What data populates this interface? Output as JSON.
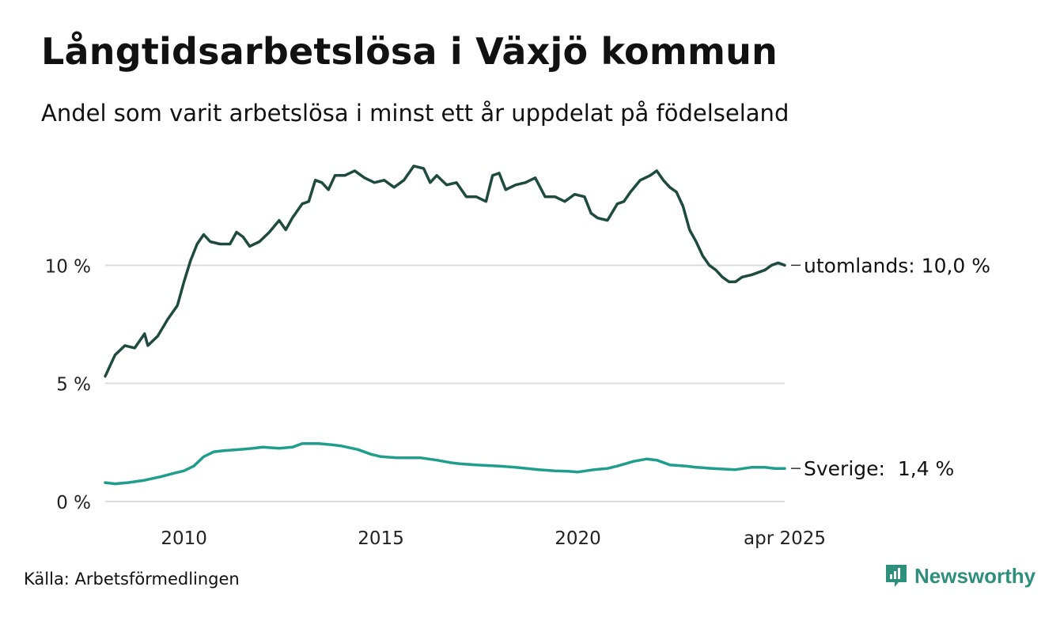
{
  "title": "Långtidsarbetslösa i Växjö kommun",
  "subtitle": "Andel som varit arbetslösa i minst ett år uppdelat på födelseland",
  "source": "Källa: Arbetsförmedlingen",
  "brand": {
    "name": "Newsworthy",
    "logo_icon": "newsworthy-logo-icon",
    "color": "#2e8f7a"
  },
  "chart_data": {
    "type": "line",
    "x_start": "2008-01",
    "x_end": "2025-04",
    "x_step": "month",
    "ylim": [
      0,
      15
    ],
    "yticks": [
      {
        "value": 0,
        "label": "0 %"
      },
      {
        "value": 5,
        "label": "5 %"
      },
      {
        "value": 10,
        "label": "10 %"
      }
    ],
    "xticks": [
      {
        "date": "2010-01",
        "label": "2010"
      },
      {
        "date": "2015-01",
        "label": "2015"
      },
      {
        "date": "2020-01",
        "label": "2020"
      },
      {
        "date": "2025-04",
        "label": "apr 2025"
      }
    ],
    "grid": "horizontal",
    "series": [
      {
        "name": "utomlands",
        "end_label": "utomlands: 10,0 %",
        "color": "#1f4a40",
        "anchors": [
          [
            "2008-01",
            5.3
          ],
          [
            "2008-04",
            6.2
          ],
          [
            "2008-07",
            6.6
          ],
          [
            "2008-10",
            6.5
          ],
          [
            "2009-01",
            7.1
          ],
          [
            "2009-02",
            6.6
          ],
          [
            "2009-05",
            7.0
          ],
          [
            "2009-08",
            7.7
          ],
          [
            "2009-11",
            8.3
          ],
          [
            "2010-01",
            9.3
          ],
          [
            "2010-03",
            10.2
          ],
          [
            "2010-05",
            10.9
          ],
          [
            "2010-07",
            11.3
          ],
          [
            "2010-09",
            11.0
          ],
          [
            "2010-12",
            10.9
          ],
          [
            "2011-03",
            10.9
          ],
          [
            "2011-05",
            11.4
          ],
          [
            "2011-07",
            11.2
          ],
          [
            "2011-09",
            10.8
          ],
          [
            "2011-12",
            11.0
          ],
          [
            "2012-03",
            11.4
          ],
          [
            "2012-06",
            11.9
          ],
          [
            "2012-08",
            11.5
          ],
          [
            "2012-10",
            12.0
          ],
          [
            "2013-01",
            12.6
          ],
          [
            "2013-03",
            12.7
          ],
          [
            "2013-05",
            13.6
          ],
          [
            "2013-07",
            13.5
          ],
          [
            "2013-09",
            13.2
          ],
          [
            "2013-11",
            13.8
          ],
          [
            "2014-02",
            13.8
          ],
          [
            "2014-05",
            14.0
          ],
          [
            "2014-08",
            13.7
          ],
          [
            "2014-11",
            13.5
          ],
          [
            "2015-02",
            13.6
          ],
          [
            "2015-05",
            13.3
          ],
          [
            "2015-08",
            13.6
          ],
          [
            "2015-11",
            14.2
          ],
          [
            "2016-02",
            14.1
          ],
          [
            "2016-04",
            13.5
          ],
          [
            "2016-06",
            13.8
          ],
          [
            "2016-09",
            13.4
          ],
          [
            "2016-12",
            13.5
          ],
          [
            "2017-03",
            12.9
          ],
          [
            "2017-06",
            12.9
          ],
          [
            "2017-09",
            12.7
          ],
          [
            "2017-11",
            13.8
          ],
          [
            "2018-01",
            13.9
          ],
          [
            "2018-03",
            13.2
          ],
          [
            "2018-06",
            13.4
          ],
          [
            "2018-09",
            13.5
          ],
          [
            "2018-12",
            13.7
          ],
          [
            "2019-03",
            12.9
          ],
          [
            "2019-06",
            12.9
          ],
          [
            "2019-09",
            12.7
          ],
          [
            "2019-12",
            13.0
          ],
          [
            "2020-03",
            12.9
          ],
          [
            "2020-05",
            12.2
          ],
          [
            "2020-07",
            12.0
          ],
          [
            "2020-10",
            11.9
          ],
          [
            "2021-01",
            12.6
          ],
          [
            "2021-03",
            12.7
          ],
          [
            "2021-05",
            13.1
          ],
          [
            "2021-08",
            13.6
          ],
          [
            "2021-11",
            13.8
          ],
          [
            "2022-01",
            14.0
          ],
          [
            "2022-03",
            13.6
          ],
          [
            "2022-05",
            13.3
          ],
          [
            "2022-07",
            13.1
          ],
          [
            "2022-09",
            12.5
          ],
          [
            "2022-11",
            11.5
          ],
          [
            "2023-01",
            11.0
          ],
          [
            "2023-03",
            10.4
          ],
          [
            "2023-05",
            10.0
          ],
          [
            "2023-07",
            9.8
          ],
          [
            "2023-09",
            9.5
          ],
          [
            "2023-11",
            9.3
          ],
          [
            "2024-01",
            9.3
          ],
          [
            "2024-03",
            9.5
          ],
          [
            "2024-06",
            9.6
          ],
          [
            "2024-08",
            9.7
          ],
          [
            "2024-10",
            9.8
          ],
          [
            "2024-12",
            10.0
          ],
          [
            "2025-02",
            10.1
          ],
          [
            "2025-04",
            10.0
          ]
        ]
      },
      {
        "name": "Sverige",
        "end_label": "Sverige:  1,4 %",
        "color": "#1f9e8c",
        "anchors": [
          [
            "2008-01",
            0.8
          ],
          [
            "2008-04",
            0.75
          ],
          [
            "2008-08",
            0.8
          ],
          [
            "2009-01",
            0.9
          ],
          [
            "2009-06",
            1.05
          ],
          [
            "2009-10",
            1.2
          ],
          [
            "2010-01",
            1.3
          ],
          [
            "2010-04",
            1.5
          ],
          [
            "2010-07",
            1.9
          ],
          [
            "2010-10",
            2.1
          ],
          [
            "2011-01",
            2.15
          ],
          [
            "2011-06",
            2.2
          ],
          [
            "2011-10",
            2.25
          ],
          [
            "2012-01",
            2.3
          ],
          [
            "2012-06",
            2.25
          ],
          [
            "2012-10",
            2.3
          ],
          [
            "2013-01",
            2.45
          ],
          [
            "2013-06",
            2.45
          ],
          [
            "2013-10",
            2.4
          ],
          [
            "2014-01",
            2.35
          ],
          [
            "2014-06",
            2.2
          ],
          [
            "2014-10",
            2.0
          ],
          [
            "2015-01",
            1.9
          ],
          [
            "2015-06",
            1.85
          ],
          [
            "2016-01",
            1.85
          ],
          [
            "2016-06",
            1.75
          ],
          [
            "2016-10",
            1.65
          ],
          [
            "2017-01",
            1.6
          ],
          [
            "2017-06",
            1.55
          ],
          [
            "2018-01",
            1.5
          ],
          [
            "2018-06",
            1.45
          ],
          [
            "2019-01",
            1.35
          ],
          [
            "2019-06",
            1.3
          ],
          [
            "2019-10",
            1.28
          ],
          [
            "2020-01",
            1.25
          ],
          [
            "2020-06",
            1.35
          ],
          [
            "2020-10",
            1.4
          ],
          [
            "2021-01",
            1.5
          ],
          [
            "2021-06",
            1.7
          ],
          [
            "2021-10",
            1.8
          ],
          [
            "2022-01",
            1.75
          ],
          [
            "2022-05",
            1.55
          ],
          [
            "2022-10",
            1.5
          ],
          [
            "2023-01",
            1.45
          ],
          [
            "2023-06",
            1.4
          ],
          [
            "2024-01",
            1.35
          ],
          [
            "2024-06",
            1.45
          ],
          [
            "2024-10",
            1.45
          ],
          [
            "2025-01",
            1.4
          ],
          [
            "2025-04",
            1.4
          ]
        ]
      }
    ]
  }
}
